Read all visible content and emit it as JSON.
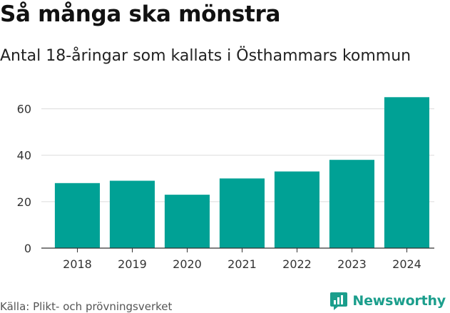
{
  "header": {
    "title": "Så många ska mönstra",
    "subtitle": "Antal 18-åringar som kallats i Östhammars kommun"
  },
  "footer": {
    "source": "Källa: Plikt- och prövningsverket",
    "brand": "Newsworthy",
    "brand_icon": "newsworthy-logo-icon",
    "brand_color": "#1b9e8c"
  },
  "chart_data": {
    "type": "bar",
    "title": "Så många ska mönstra",
    "subtitle": "Antal 18-åringar som kallats i Östhammars kommun",
    "xlabel": "",
    "ylabel": "",
    "categories": [
      "2018",
      "2019",
      "2020",
      "2021",
      "2022",
      "2023",
      "2024"
    ],
    "values": [
      28,
      29,
      23,
      30,
      33,
      38,
      65
    ],
    "ylim": [
      0,
      70
    ],
    "yticks": [
      0,
      20,
      40,
      60
    ],
    "grid": true,
    "bar_color": "#00a195"
  }
}
